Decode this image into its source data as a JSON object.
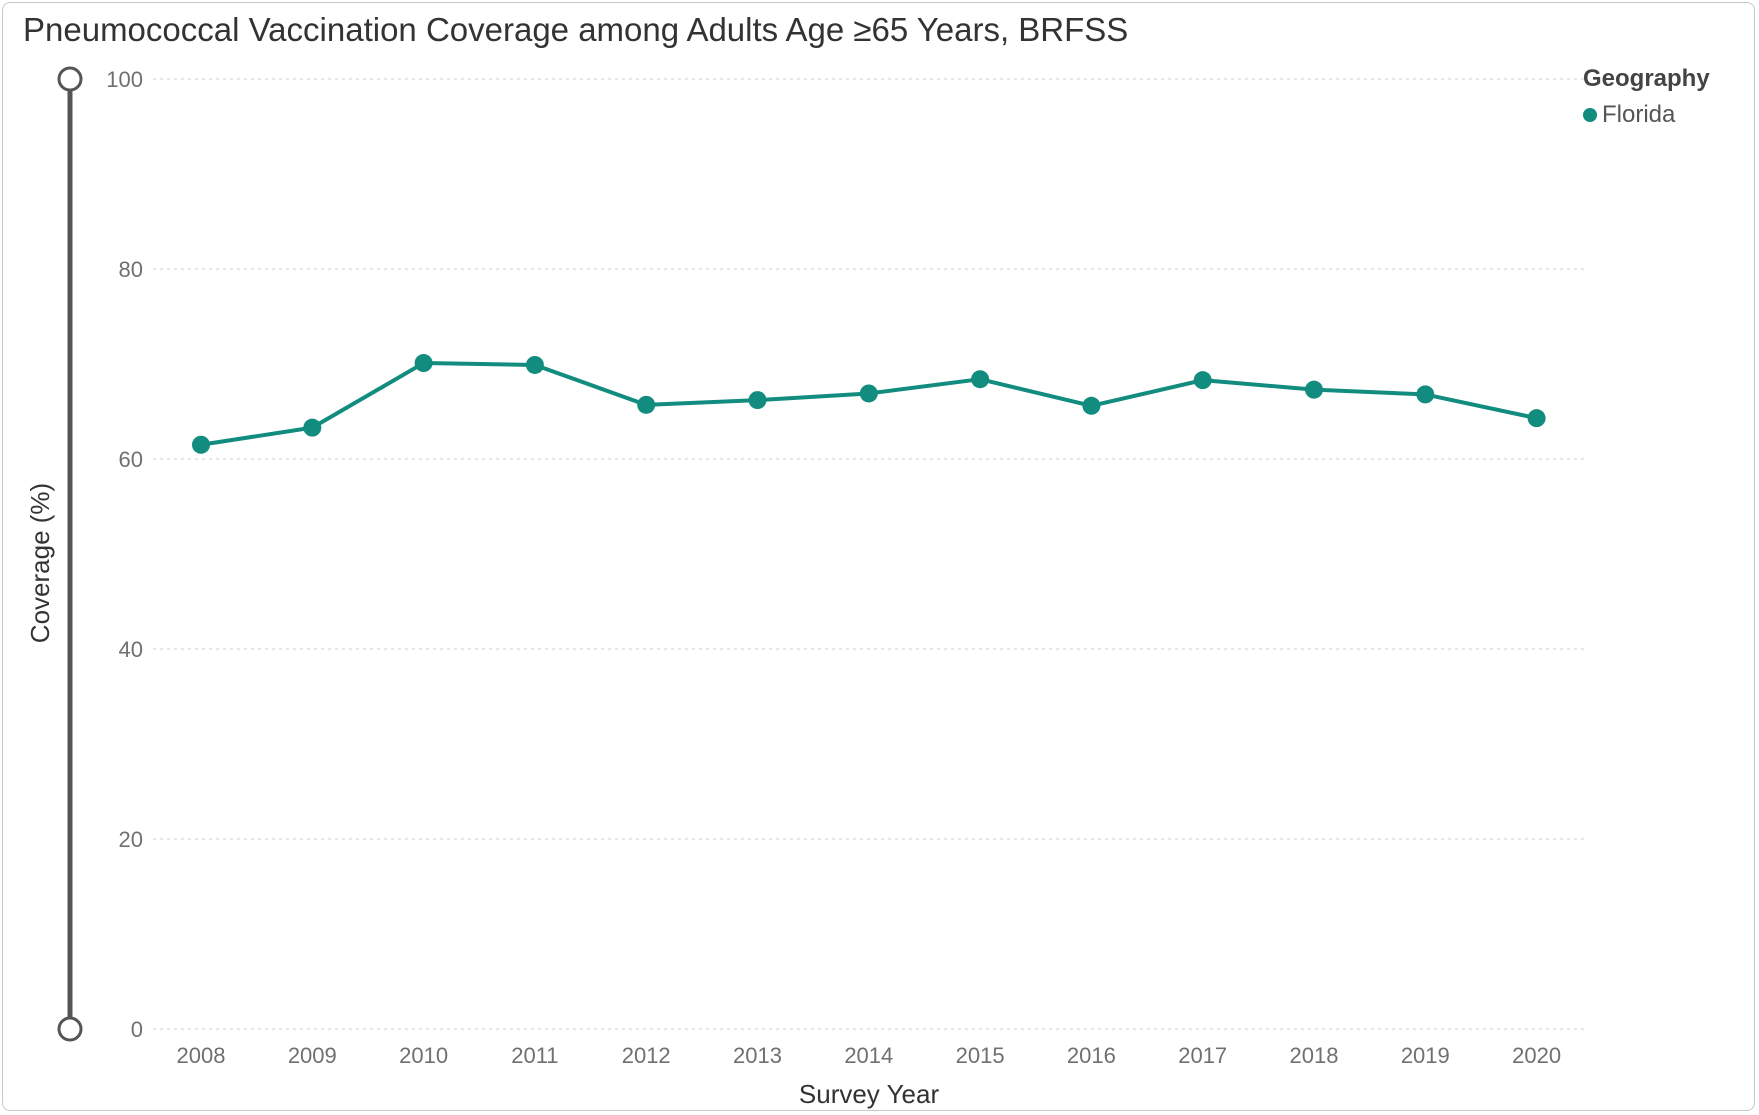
{
  "chart_data": {
    "type": "line",
    "title": "Pneumococcal Vaccination Coverage among Adults Age ≥65 Years, BRFSS",
    "xlabel": "Survey Year",
    "ylabel": "Coverage (%)",
    "categories": [
      "2008",
      "2009",
      "2010",
      "2011",
      "2012",
      "2013",
      "2014",
      "2015",
      "2016",
      "2017",
      "2018",
      "2019",
      "2020"
    ],
    "series": [
      {
        "name": "Florida",
        "values": [
          61.5,
          63.3,
          70.1,
          69.9,
          65.7,
          66.2,
          66.9,
          68.4,
          65.6,
          68.3,
          67.3,
          66.8,
          64.3
        ]
      }
    ],
    "ylim": [
      0,
      100
    ],
    "yticks": [
      0,
      20,
      40,
      60,
      80,
      100
    ],
    "grid": true,
    "legend_title": "Geography",
    "legend_position": "top-right",
    "line_color": "#118c7e",
    "gridline_color": "#dddddd"
  }
}
